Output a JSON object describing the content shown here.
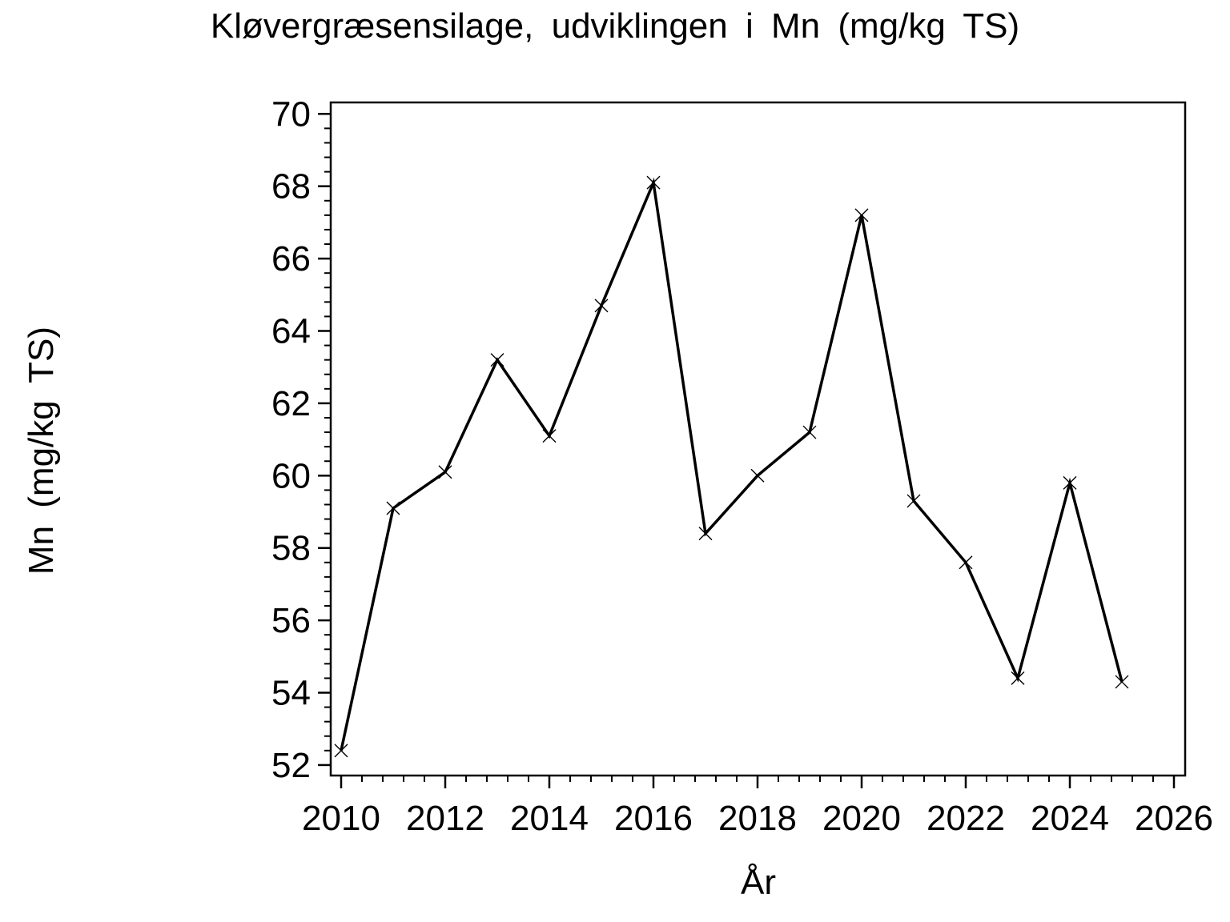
{
  "title": "Kløvergræsensilage, udviklingen i Mn (mg/kg TS)",
  "chart_data": {
    "type": "line",
    "title": "Kløvergræsensilage, udviklingen i Mn (mg/kg TS)",
    "xlabel": "År",
    "ylabel": "Mn (mg/kg TS)",
    "x": [
      2010,
      2011,
      2012,
      2013,
      2014,
      2015,
      2016,
      2017,
      2018,
      2019,
      2020,
      2021,
      2022,
      2023,
      2024,
      2025
    ],
    "series": [
      {
        "name": "Mn",
        "values": [
          52.4,
          59.1,
          60.1,
          63.2,
          61.1,
          64.7,
          68.1,
          58.4,
          60.0,
          61.2,
          67.2,
          59.3,
          57.6,
          54.4,
          59.8,
          54.3
        ]
      }
    ],
    "xlim": [
      2009.8,
      2026.23
    ],
    "ylim": [
      51.7,
      70.3
    ],
    "x_major_ticks": [
      2010,
      2012,
      2014,
      2016,
      2018,
      2020,
      2022,
      2024,
      2026
    ],
    "y_major_ticks": [
      52,
      54,
      56,
      58,
      60,
      62,
      64,
      66,
      68,
      70
    ],
    "minor_ticks_per_interval": 4,
    "grid": false,
    "legend": "none",
    "marker": "x",
    "line_color": "#000000",
    "axis_color": "#000000",
    "background": "#ffffff"
  }
}
